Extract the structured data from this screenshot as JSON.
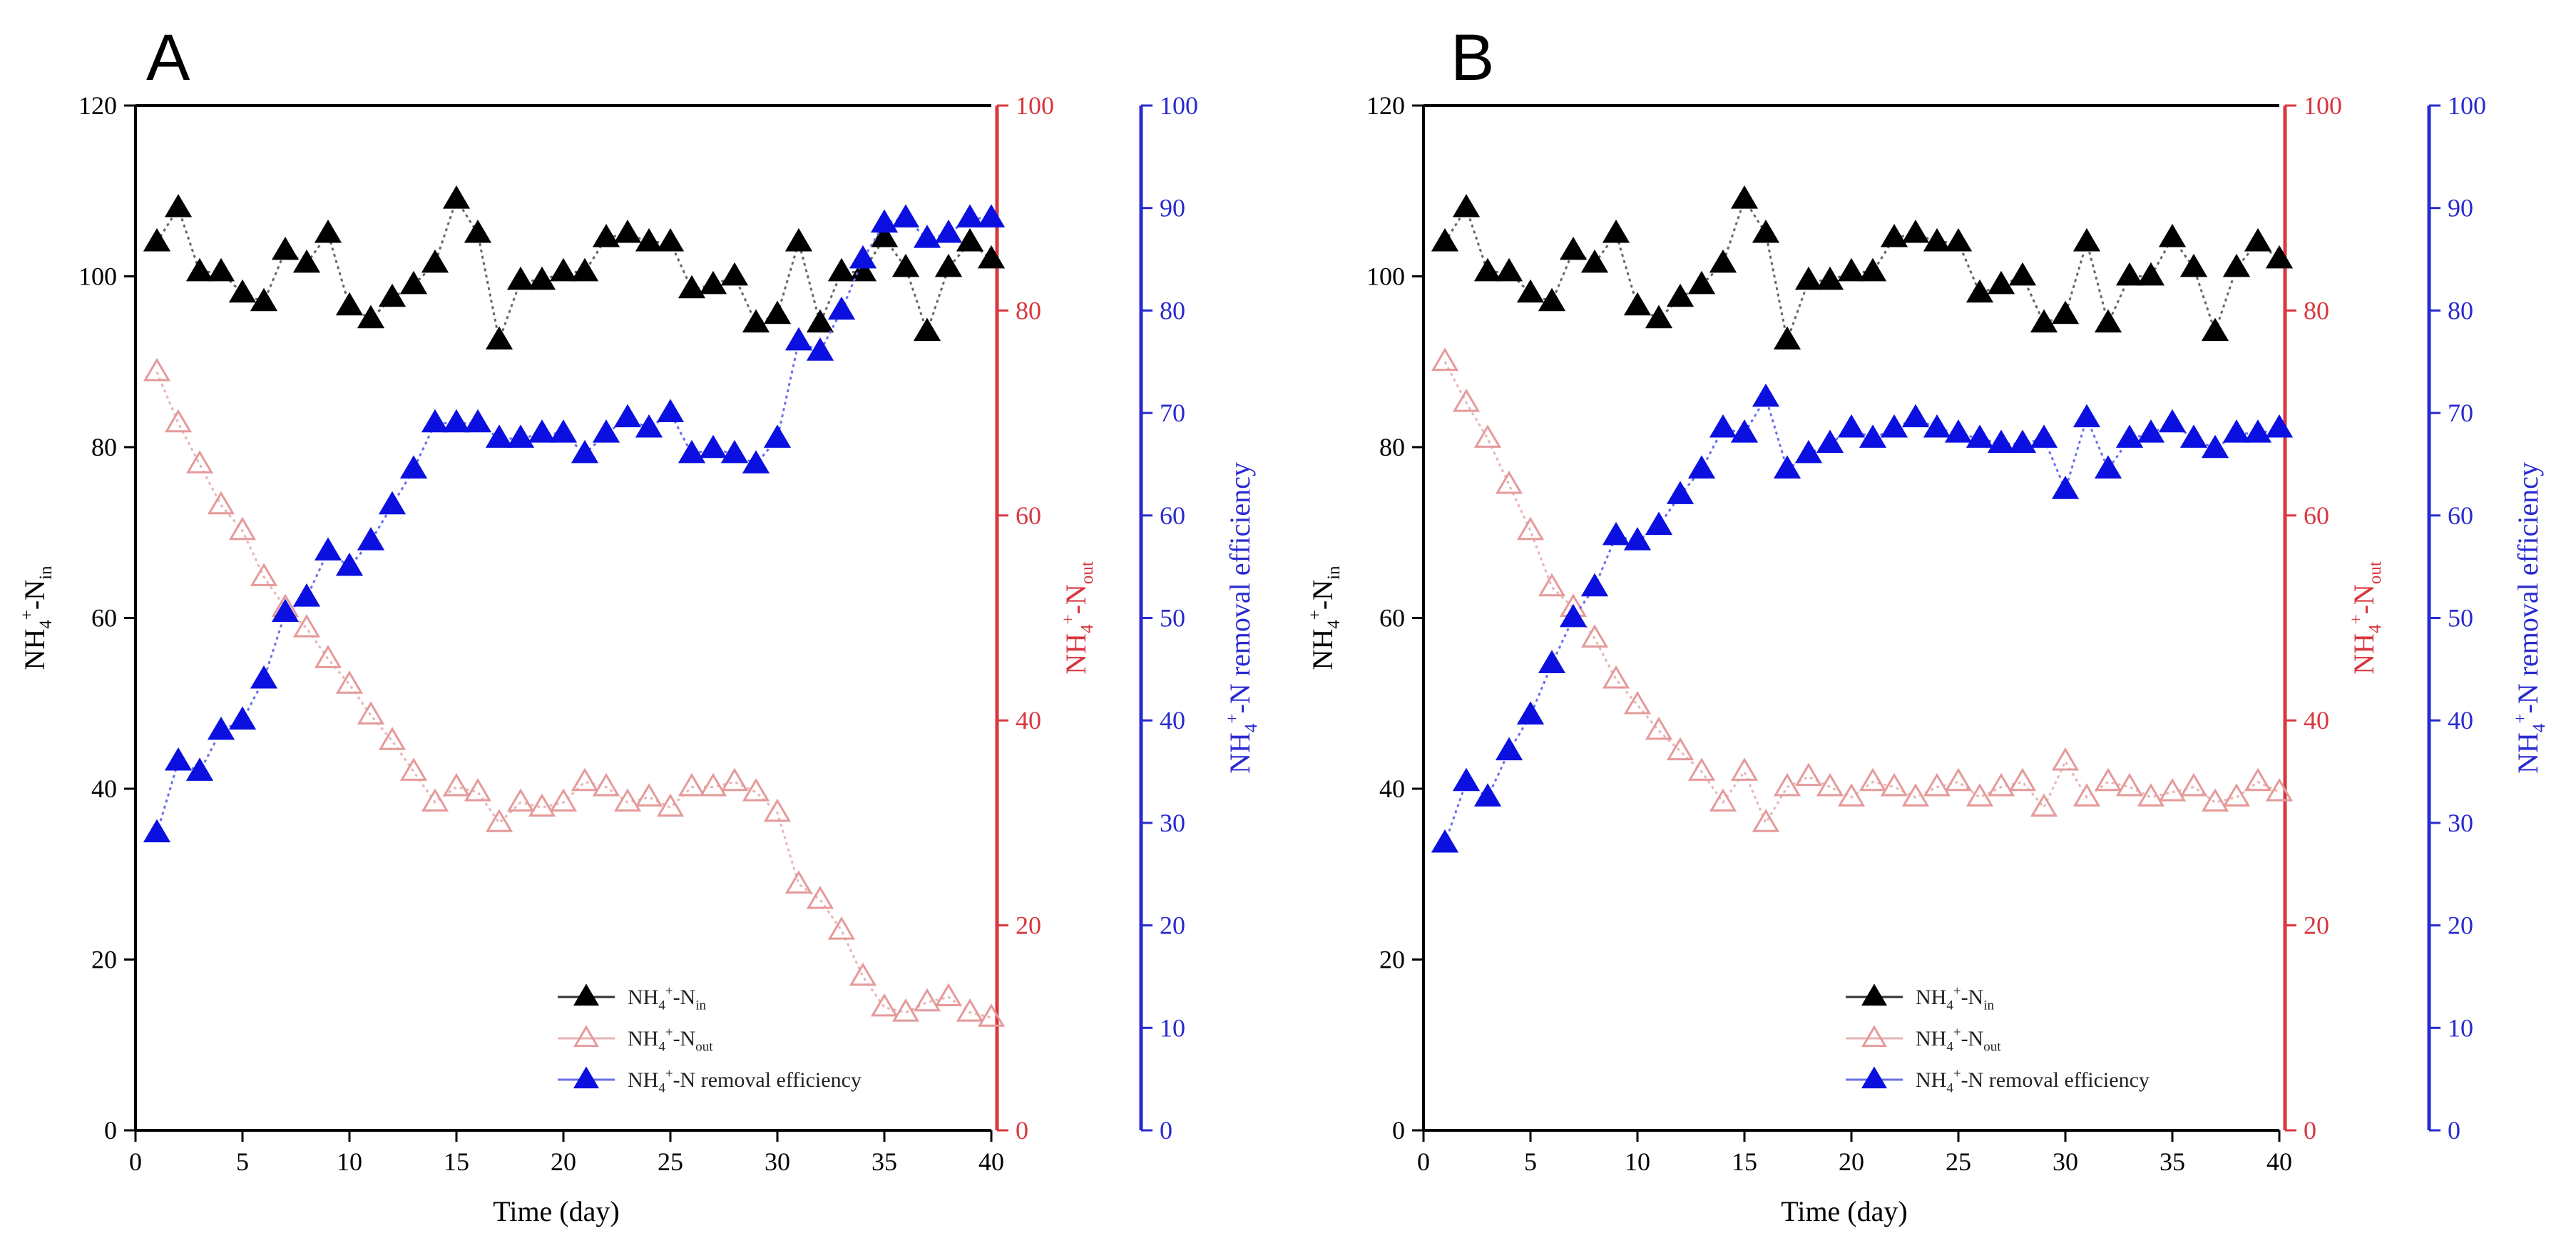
{
  "colors": {
    "inlet": "#000000",
    "outlet": "#d9363e",
    "removal": "#0b10e0",
    "outlet_marker": "#e59a9a",
    "outlet_line": "#e8b4b4",
    "inlet_line": "#666666",
    "removal_line": "#6a70e8",
    "removal_axis": "#2a2ad0"
  },
  "chart_data": [
    {
      "type": "line",
      "panel_label": "A",
      "xlabel": "Time (day)",
      "x_ticks": [
        "0",
        "5",
        "10",
        "15",
        "20",
        "25",
        "30",
        "35",
        "40"
      ],
      "xlim": [
        0,
        40
      ],
      "y_axes": [
        {
          "id": "left",
          "label_main": "NH",
          "label_sub": "4",
          "label_sup": "+",
          "label_rest": "-N",
          "label_sub2": "in",
          "ylim": [
            0,
            120
          ],
          "ticks": [
            "0",
            "20",
            "40",
            "60",
            "80",
            "100",
            "120"
          ]
        },
        {
          "id": "right1",
          "label_main": "NH",
          "label_sub": "4",
          "label_sup": "+",
          "label_rest": "-N",
          "label_sub2": "out",
          "ylim": [
            0,
            100
          ],
          "ticks": [
            "0",
            "20",
            "40",
            "60",
            "80",
            "100"
          ]
        },
        {
          "id": "right2",
          "label_main": "NH",
          "label_sub": "4",
          "label_sup": "+",
          "label_rest": "-N removal efficiency",
          "label_sub2": "",
          "ylim": [
            0,
            100
          ],
          "ticks": [
            "0",
            "10",
            "20",
            "30",
            "40",
            "50",
            "60",
            "70",
            "80",
            "90",
            "100"
          ]
        }
      ],
      "legend": [
        {
          "series": "inlet",
          "main": "NH",
          "sub": "4",
          "sup": "+",
          "rest": "-N",
          "sub2": "in"
        },
        {
          "series": "outlet",
          "main": "NH",
          "sub": "4",
          "sup": "+",
          "rest": "-N",
          "sub2": "out"
        },
        {
          "series": "removal",
          "main": "NH",
          "sub": "4",
          "sup": "+",
          "rest": "-N removal efficiency",
          "sub2": ""
        }
      ],
      "series": [
        {
          "name": "inlet",
          "axis": "left",
          "x": [
            1,
            2,
            3,
            4,
            5,
            6,
            7,
            8,
            9,
            10,
            11,
            12,
            13,
            14,
            15,
            16,
            17,
            18,
            19,
            20,
            21,
            22,
            23,
            24,
            25,
            26,
            27,
            28,
            29,
            30,
            31,
            32,
            33,
            34,
            35,
            36,
            37,
            38,
            39,
            40
          ],
          "values": [
            104,
            108,
            100.5,
            100.5,
            98,
            97,
            103,
            101.5,
            105,
            96.5,
            95,
            97.5,
            99,
            101.5,
            109,
            105,
            92.5,
            99.5,
            99.5,
            100.5,
            100.5,
            104.5,
            105,
            104,
            104,
            98.5,
            99,
            100,
            94.5,
            95.5,
            104,
            94.5,
            100.5,
            100.5,
            104.5,
            101,
            93.5,
            101,
            104,
            102
          ]
        },
        {
          "name": "outlet",
          "axis": "right1",
          "x": [
            1,
            2,
            3,
            4,
            5,
            6,
            7,
            8,
            9,
            10,
            11,
            12,
            13,
            14,
            15,
            16,
            17,
            18,
            19,
            20,
            21,
            22,
            23,
            24,
            25,
            26,
            27,
            28,
            29,
            30,
            31,
            32,
            33,
            34,
            35,
            36,
            37,
            38,
            39,
            40
          ],
          "values": [
            74,
            69,
            65,
            61,
            58.5,
            54,
            51,
            49,
            46,
            43.5,
            40.5,
            38,
            35,
            32,
            33.5,
            33,
            30,
            32,
            31.5,
            32,
            34,
            33.5,
            32,
            32.5,
            31.5,
            33.5,
            33.5,
            34,
            33,
            31,
            24,
            22.5,
            19.5,
            15,
            12,
            11.5,
            12.5,
            13,
            11.5,
            11
          ]
        },
        {
          "name": "removal",
          "axis": "right2",
          "x": [
            1,
            2,
            3,
            4,
            5,
            6,
            7,
            8,
            9,
            10,
            11,
            12,
            13,
            14,
            15,
            16,
            17,
            18,
            19,
            20,
            21,
            22,
            23,
            24,
            25,
            26,
            27,
            28,
            29,
            30,
            31,
            32,
            33,
            34,
            35,
            36,
            37,
            38,
            39,
            40
          ],
          "values": [
            29,
            36,
            35,
            39,
            40,
            44,
            50.5,
            52,
            56.5,
            55,
            57.5,
            61,
            64.5,
            69,
            69,
            69,
            67.5,
            67.5,
            68,
            68,
            66,
            68,
            69.5,
            68.5,
            70,
            66,
            66.5,
            66,
            65,
            67.5,
            77,
            76,
            80,
            85,
            88.5,
            89,
            87,
            87.5,
            89,
            89
          ]
        }
      ]
    },
    {
      "type": "line",
      "panel_label": "B",
      "xlabel": "Time (day)",
      "x_ticks": [
        "0",
        "5",
        "10",
        "15",
        "20",
        "25",
        "30",
        "35",
        "40"
      ],
      "xlim": [
        0,
        40
      ],
      "y_axes": [
        {
          "id": "left",
          "label_main": "NH",
          "label_sub": "4",
          "label_sup": "+",
          "label_rest": "-N",
          "label_sub2": "in",
          "ylim": [
            0,
            120
          ],
          "ticks": [
            "0",
            "20",
            "40",
            "60",
            "80",
            "100",
            "120"
          ]
        },
        {
          "id": "right1",
          "label_main": "NH",
          "label_sub": "4",
          "label_sup": "+",
          "label_rest": "-N",
          "label_sub2": "out",
          "ylim": [
            0,
            100
          ],
          "ticks": [
            "0",
            "20",
            "40",
            "60",
            "80",
            "100"
          ]
        },
        {
          "id": "right2",
          "label_main": "NH",
          "label_sub": "4",
          "label_sup": "+",
          "label_rest": "-N removal efficiency",
          "label_sub2": "",
          "ylim": [
            0,
            100
          ],
          "ticks": [
            "0",
            "10",
            "20",
            "30",
            "40",
            "50",
            "60",
            "70",
            "80",
            "90",
            "100"
          ]
        }
      ],
      "legend": [
        {
          "series": "inlet",
          "main": "NH",
          "sub": "4",
          "sup": "+",
          "rest": "-N",
          "sub2": "in"
        },
        {
          "series": "outlet",
          "main": "NH",
          "sub": "4",
          "sup": "+",
          "rest": "-N",
          "sub2": "out"
        },
        {
          "series": "removal",
          "main": "NH",
          "sub": "4",
          "sup": "+",
          "rest": "-N removal efficiency",
          "sub2": ""
        }
      ],
      "series": [
        {
          "name": "inlet",
          "axis": "left",
          "x": [
            1,
            2,
            3,
            4,
            5,
            6,
            7,
            8,
            9,
            10,
            11,
            12,
            13,
            14,
            15,
            16,
            17,
            18,
            19,
            20,
            21,
            22,
            23,
            24,
            25,
            26,
            27,
            28,
            29,
            30,
            31,
            32,
            33,
            34,
            35,
            36,
            37,
            38,
            39,
            40
          ],
          "values": [
            104,
            108,
            100.5,
            100.5,
            98,
            97,
            103,
            101.5,
            105,
            96.5,
            95,
            97.5,
            99,
            101.5,
            109,
            105,
            92.5,
            99.5,
            99.5,
            100.5,
            100.5,
            104.5,
            105,
            104,
            104,
            98,
            99,
            100,
            94.5,
            95.5,
            104,
            94.5,
            100,
            100,
            104.5,
            101,
            93.5,
            101,
            104,
            102
          ]
        },
        {
          "name": "outlet",
          "axis": "right1",
          "x": [
            1,
            2,
            3,
            4,
            5,
            6,
            7,
            8,
            9,
            10,
            11,
            12,
            13,
            14,
            15,
            16,
            17,
            18,
            19,
            20,
            21,
            22,
            23,
            24,
            25,
            26,
            27,
            28,
            29,
            30,
            31,
            32,
            33,
            34,
            35,
            36,
            37,
            38,
            39,
            40
          ],
          "values": [
            75,
            71,
            67.5,
            63,
            58.5,
            53,
            51,
            48,
            44,
            41.5,
            39,
            37,
            35,
            32,
            35,
            30,
            33.5,
            34.5,
            33.5,
            32.5,
            34,
            33.5,
            32.5,
            33.5,
            34,
            32.5,
            33.5,
            34,
            31.5,
            36,
            32.5,
            34,
            33.5,
            32.5,
            33,
            33.5,
            32,
            32.5,
            34,
            33
          ]
        },
        {
          "name": "removal",
          "axis": "right2",
          "x": [
            1,
            2,
            3,
            4,
            5,
            6,
            7,
            8,
            9,
            10,
            11,
            12,
            13,
            14,
            15,
            16,
            17,
            18,
            19,
            20,
            21,
            22,
            23,
            24,
            25,
            26,
            27,
            28,
            29,
            30,
            31,
            32,
            33,
            34,
            35,
            36,
            37,
            38,
            39,
            40
          ],
          "values": [
            28,
            34,
            32.5,
            37,
            40.5,
            45.5,
            50,
            53,
            58,
            57.5,
            59,
            62,
            64.5,
            68.5,
            68,
            71.5,
            64.5,
            66,
            67,
            68.5,
            67.5,
            68.5,
            69.5,
            68.5,
            68,
            67.5,
            67,
            67,
            67.5,
            62.5,
            69.5,
            64.5,
            67.5,
            68,
            69,
            67.5,
            66.5,
            68,
            68,
            68.5
          ]
        }
      ]
    }
  ]
}
